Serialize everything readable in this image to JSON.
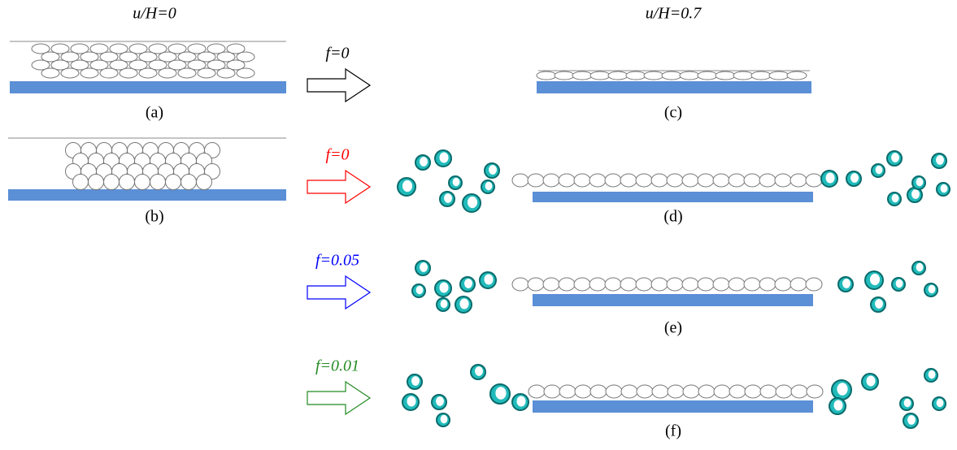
{
  "titles": {
    "left": "u/H=0",
    "right": "u/H=0.7"
  },
  "arrows": [
    {
      "label": "f=0",
      "color": "#000000"
    },
    {
      "label": "f=0",
      "color": "#ff0000"
    },
    {
      "label": "f=0.05",
      "color": "#0000ff"
    },
    {
      "label": "f=0.01",
      "color": "#228b22"
    }
  ],
  "panels": {
    "a": "(a)",
    "b": "(b)",
    "c": "(c)",
    "d": "(d)",
    "e": "(e)",
    "f": "(f)"
  }
}
